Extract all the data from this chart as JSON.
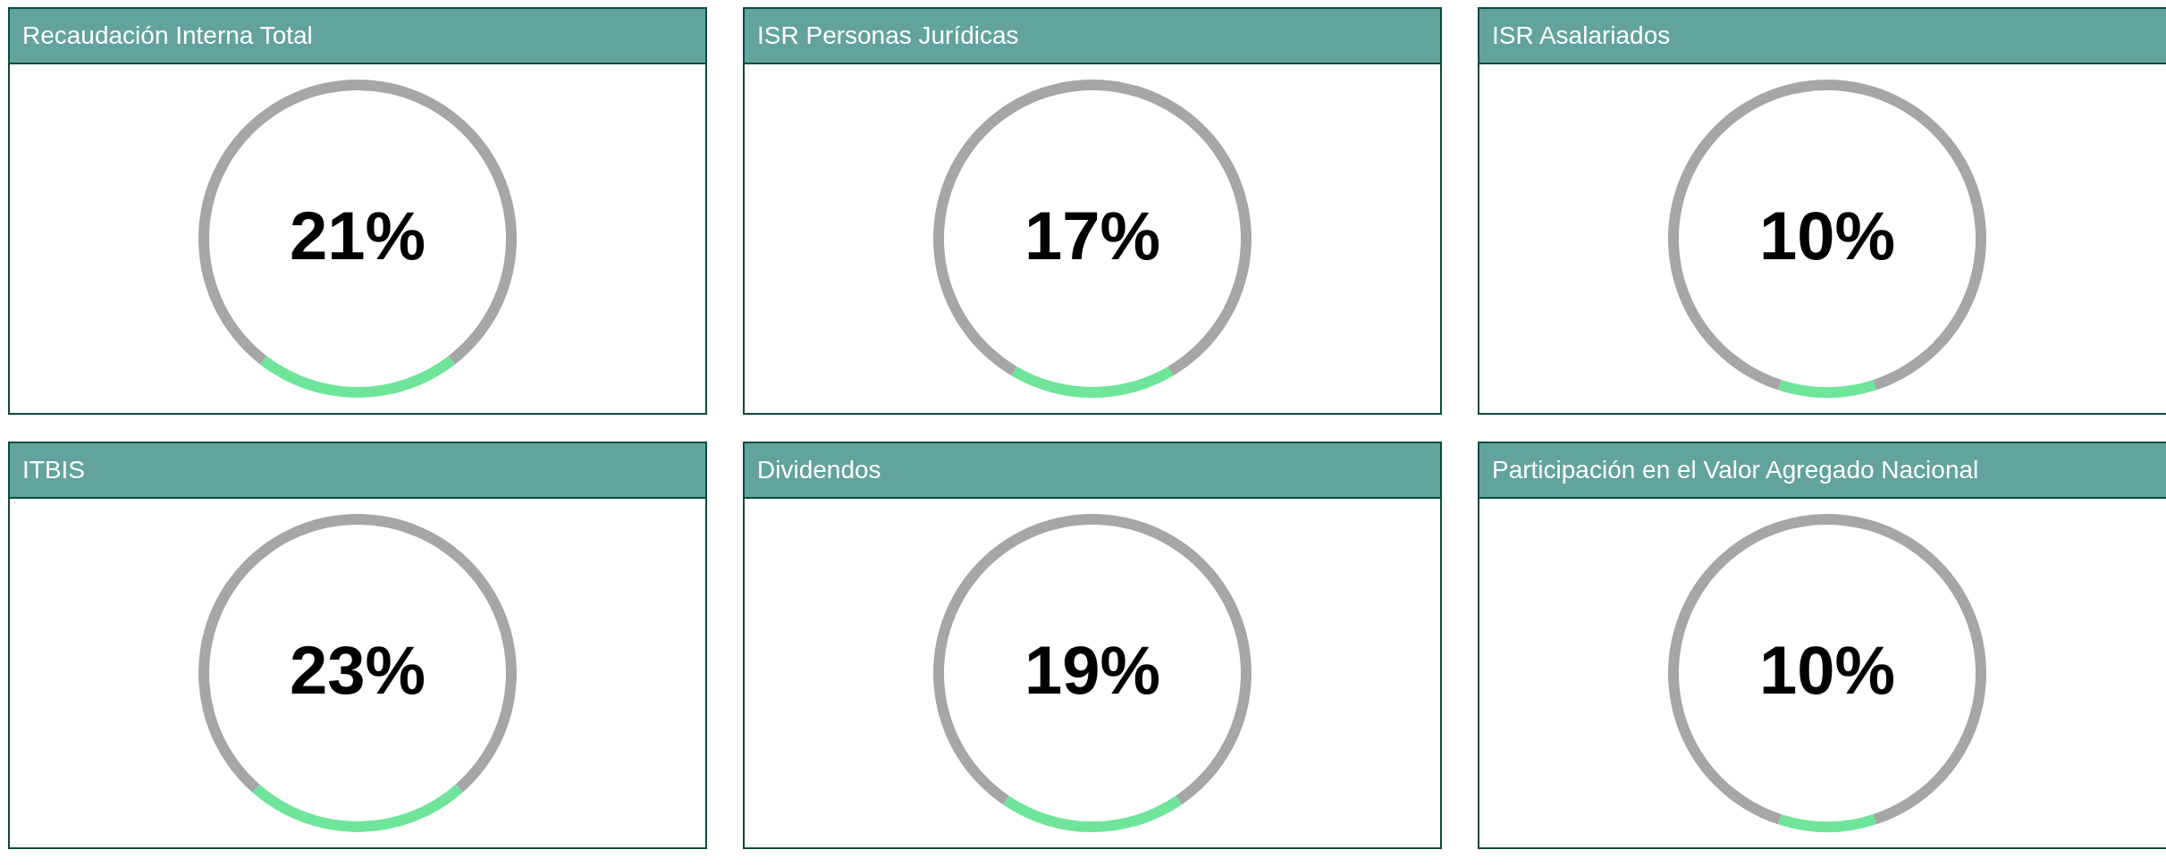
{
  "chart_data": [
    {
      "type": "donut",
      "title": "Recaudación Interna Total",
      "categories": [
        null,
        null
      ],
      "values": [
        21,
        79
      ],
      "colors": [
        "#6ee59a",
        "#a6a6a6"
      ],
      "annotations": [
        "21%"
      ]
    },
    {
      "type": "donut",
      "title": "ISR Personas Jurídicas",
      "categories": [
        null,
        null
      ],
      "values": [
        17,
        83
      ],
      "colors": [
        "#6ee59a",
        "#a6a6a6"
      ],
      "annotations": [
        "17%"
      ]
    },
    {
      "type": "donut",
      "title": "ISR Asalariados",
      "categories": [
        null,
        null
      ],
      "values": [
        10,
        90
      ],
      "colors": [
        "#6ee59a",
        "#a6a6a6"
      ],
      "annotations": [
        "10%"
      ]
    },
    {
      "type": "donut",
      "title": "ITBIS",
      "categories": [
        null,
        null
      ],
      "values": [
        23,
        77
      ],
      "colors": [
        "#6ee59a",
        "#a6a6a6"
      ],
      "annotations": [
        "23%"
      ]
    },
    {
      "type": "donut",
      "title": "Dividendos",
      "categories": [
        null,
        null
      ],
      "values": [
        19,
        81
      ],
      "colors": [
        "#6ee59a",
        "#a6a6a6"
      ],
      "annotations": [
        "19%"
      ]
    },
    {
      "type": "donut",
      "title": "Participación en el Valor Agregado Nacional",
      "categories": [
        null,
        null
      ],
      "values": [
        10,
        90
      ],
      "colors": [
        "#6ee59a",
        "#a6a6a6"
      ],
      "annotations": [
        "10%"
      ]
    }
  ]
}
